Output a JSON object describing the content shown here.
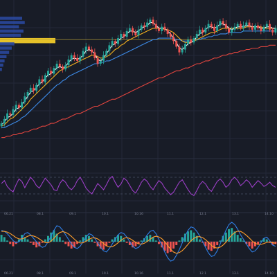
{
  "colors": {
    "background": "#181c27",
    "grid": "#232838",
    "candle_up": "#26a69a",
    "candle_down": "#ef5350",
    "ma_fast": "#ffffff",
    "ma_mid": "#f2b01e",
    "ma_slow": "#3d8be8",
    "ma_long": "#e0443e",
    "vp_bar": "#2b4aa5",
    "vp_poc": "#e6c229",
    "poc_line": "#b8a23a",
    "rsi_line": "#9c3fc7",
    "rsi_band": "#4a5068",
    "macd_line": "#2f7fe6",
    "signal_line": "#ff9e2b",
    "hist_up": "#26a69a",
    "hist_down": "#ef5350",
    "axis_text": "#7b8194"
  },
  "chart_data": [
    {
      "type": "candlestick",
      "panel": "price",
      "ylim": [
        0,
        100
      ],
      "x_count": 95,
      "x_tick_labels": [
        "06.21",
        "08.1",
        "09.1",
        "10.1",
        "10.16",
        "11.1",
        "12.1",
        "13.1",
        "14.10"
      ],
      "series": [
        {
          "name": "",
          "role": "close",
          "values": [
            18,
            21,
            25,
            24,
            28,
            31,
            29,
            33,
            37,
            40,
            43,
            41,
            45,
            49,
            47,
            52,
            55,
            53,
            57,
            60,
            58,
            56,
            59,
            63,
            66,
            64,
            62,
            65,
            69,
            72,
            70,
            68,
            64,
            60,
            62,
            66,
            69,
            73,
            76,
            74,
            78,
            81,
            79,
            83,
            85,
            82,
            80,
            84,
            87,
            86,
            89,
            91,
            88,
            85,
            83,
            86,
            84,
            81,
            79,
            76,
            72,
            68,
            70,
            74,
            77,
            75,
            78,
            81,
            84,
            82,
            85,
            88,
            86,
            83,
            87,
            90,
            88,
            85,
            82,
            84,
            86,
            88,
            85,
            87,
            89,
            86,
            84,
            87,
            85,
            83,
            86,
            88,
            84,
            82,
            85
          ]
        },
        {
          "name": "",
          "role": "ma_fast",
          "values": [
            17,
            19,
            22,
            23,
            25,
            28,
            29,
            31,
            34,
            37,
            40,
            41,
            43,
            46,
            47,
            50,
            52,
            53,
            55,
            57,
            58,
            57,
            58,
            61,
            63,
            64,
            63,
            64,
            66,
            69,
            70,
            69,
            67,
            63,
            62,
            64,
            67,
            70,
            73,
            74,
            76,
            78,
            79,
            81,
            83,
            83,
            82,
            83,
            85,
            86,
            87,
            89,
            89,
            87,
            85,
            85,
            85,
            83,
            81,
            78,
            75,
            71,
            70,
            72,
            74,
            75,
            76,
            79,
            81,
            82,
            84,
            86,
            86,
            85,
            86,
            88,
            88,
            87,
            85,
            84,
            85,
            86,
            86,
            86,
            87,
            87,
            86,
            86,
            86,
            85,
            85,
            86,
            86,
            85,
            85
          ]
        },
        {
          "name": "",
          "role": "ma_mid",
          "values": [
            16,
            17,
            19,
            21,
            22,
            24,
            26,
            28,
            30,
            32,
            35,
            37,
            39,
            41,
            43,
            45,
            47,
            49,
            51,
            53,
            55,
            56,
            57,
            58,
            59,
            60,
            61,
            62,
            63,
            64,
            65,
            66,
            66,
            65,
            64,
            64,
            65,
            66,
            68,
            70,
            71,
            73,
            74,
            76,
            77,
            78,
            79,
            80,
            81,
            82,
            83,
            84,
            85,
            85,
            85,
            85,
            84,
            84,
            83,
            82,
            80,
            78,
            76,
            75,
            75,
            75,
            76,
            77,
            78,
            79,
            80,
            81,
            82,
            82,
            83,
            84,
            85,
            85,
            85,
            85,
            85,
            85,
            85,
            85,
            86,
            86,
            86,
            86,
            86,
            86,
            85,
            85,
            85,
            85,
            85
          ]
        },
        {
          "name": "",
          "role": "ma_slow",
          "values": [
            15,
            15,
            16,
            17,
            18,
            19,
            20,
            22,
            23,
            25,
            27,
            29,
            31,
            33,
            35,
            37,
            39,
            41,
            43,
            45,
            46,
            48,
            49,
            51,
            52,
            53,
            54,
            55,
            56,
            57,
            58,
            59,
            60,
            60,
            61,
            61,
            62,
            62,
            63,
            64,
            65,
            66,
            67,
            68,
            69,
            70,
            71,
            72,
            73,
            74,
            75,
            76,
            77,
            77,
            78,
            78,
            78,
            78,
            78,
            78,
            77,
            77,
            76,
            76,
            76,
            76,
            76,
            77,
            77,
            78,
            78,
            79,
            79,
            80,
            80,
            81,
            81,
            81,
            82,
            82,
            82,
            82,
            82,
            83,
            83,
            83,
            83,
            83,
            83,
            83,
            83,
            83,
            83,
            83,
            83
          ]
        },
        {
          "name": "",
          "role": "ma_long",
          "values": [
            8,
            8,
            9,
            9,
            10,
            10,
            11,
            11,
            12,
            12,
            13,
            14,
            14,
            15,
            16,
            16,
            17,
            18,
            18,
            19,
            20,
            21,
            21,
            22,
            23,
            24,
            25,
            25,
            26,
            27,
            28,
            29,
            30,
            30,
            31,
            32,
            33,
            34,
            35,
            35,
            36,
            37,
            38,
            39,
            40,
            41,
            42,
            43,
            44,
            45,
            46,
            47,
            48,
            49,
            50,
            50,
            51,
            52,
            53,
            54,
            55,
            55,
            56,
            57,
            57,
            58,
            59,
            60,
            60,
            61,
            62,
            62,
            63,
            64,
            64,
            65,
            66,
            66,
            67,
            67,
            68,
            68,
            69,
            69,
            70,
            70,
            71,
            71,
            71,
            72,
            72,
            72,
            73,
            73,
            73
          ]
        }
      ],
      "volume_profile": [
        {
          "price": 92,
          "volume": 34
        },
        {
          "price": 89,
          "volume": 38
        },
        {
          "price": 86,
          "volume": 29
        },
        {
          "price": 83,
          "volume": 36
        },
        {
          "price": 80,
          "volume": 32
        },
        {
          "price": 77,
          "volume": 85
        },
        {
          "price": 74,
          "volume": 22
        },
        {
          "price": 71,
          "volume": 18
        },
        {
          "price": 68,
          "volume": 14
        },
        {
          "price": 65,
          "volume": 10
        },
        {
          "price": 62,
          "volume": 7
        },
        {
          "price": 59,
          "volume": 5
        },
        {
          "price": 56,
          "volume": 3
        }
      ],
      "poc_price": 77
    },
    {
      "type": "line",
      "panel": "rsi",
      "ylim": [
        0,
        100
      ],
      "bands": [
        30,
        70
      ],
      "series": [
        {
          "name": "",
          "values": [
            55,
            62,
            48,
            40,
            35,
            52,
            66,
            60,
            45,
            58,
            70,
            62,
            50,
            44,
            56,
            68,
            60,
            52,
            40,
            38,
            55,
            64,
            58,
            46,
            40,
            48,
            62,
            70,
            58,
            44,
            36,
            30,
            42,
            55,
            48,
            40,
            52,
            66,
            72,
            58,
            46,
            54,
            68,
            62,
            50,
            38,
            32,
            44,
            58,
            66,
            60,
            48,
            40,
            52,
            62,
            56,
            44,
            36,
            28,
            34,
            46,
            58,
            64,
            52,
            40,
            30,
            26,
            38,
            52,
            60,
            54,
            42,
            36,
            48,
            60,
            66,
            58,
            46,
            52,
            64,
            70,
            62,
            50,
            56,
            64,
            58,
            46,
            54,
            62,
            56,
            48,
            52,
            58,
            50,
            46
          ]
        }
      ]
    },
    {
      "type": "bar",
      "panel": "macd",
      "ylim": [
        -1,
        1
      ],
      "series": [
        {
          "name": "",
          "role": "histogram",
          "values": [
            0.3,
            0.2,
            0.05,
            -0.1,
            -0.2,
            -0.1,
            0.1,
            0.3,
            0.2,
            0.1,
            -0.05,
            -0.15,
            -0.25,
            -0.2,
            -0.05,
            0.1,
            0.25,
            0.4,
            0.5,
            0.35,
            0.2,
            0.05,
            -0.1,
            -0.2,
            -0.3,
            -0.25,
            -0.1,
            0.05,
            0.2,
            0.3,
            0.25,
            0.1,
            -0.05,
            -0.2,
            -0.3,
            -0.35,
            -0.2,
            -0.05,
            0.1,
            0.2,
            0.3,
            0.25,
            0.1,
            -0.05,
            -0.15,
            -0.25,
            -0.2,
            -0.1,
            0.05,
            0.15,
            0.25,
            0.3,
            0.2,
            0.05,
            -0.1,
            -0.25,
            -0.4,
            -0.5,
            -0.45,
            -0.3,
            -0.15,
            0.05,
            0.2,
            0.35,
            0.45,
            0.5,
            0.4,
            0.25,
            0.1,
            -0.05,
            -0.2,
            -0.35,
            -0.4,
            -0.3,
            -0.15,
            0.05,
            0.25,
            0.4,
            0.55,
            0.6,
            0.45,
            0.3,
            0.15,
            0.05,
            -0.1,
            -0.2,
            -0.3,
            -0.2,
            -0.1,
            0.05,
            0.15,
            0.1,
            -0.05,
            -0.15,
            -0.1
          ]
        },
        {
          "name": "",
          "role": "macd",
          "values": [
            0.5,
            0.45,
            0.35,
            0.2,
            0.05,
            -0.05,
            0,
            0.15,
            0.35,
            0.4,
            0.3,
            0.15,
            0,
            -0.15,
            -0.25,
            -0.2,
            0,
            0.25,
            0.5,
            0.7,
            0.65,
            0.5,
            0.3,
            0.1,
            -0.1,
            -0.25,
            -0.3,
            -0.2,
            0,
            0.2,
            0.35,
            0.3,
            0.15,
            -0.05,
            -0.25,
            -0.4,
            -0.45,
            -0.3,
            -0.1,
            0.1,
            0.3,
            0.4,
            0.35,
            0.2,
            0,
            -0.2,
            -0.3,
            -0.25,
            -0.1,
            0.1,
            0.3,
            0.45,
            0.5,
            0.35,
            0.1,
            -0.15,
            -0.45,
            -0.7,
            -0.85,
            -0.8,
            -0.6,
            -0.35,
            -0.05,
            0.25,
            0.5,
            0.65,
            0.6,
            0.45,
            0.25,
            0,
            -0.25,
            -0.5,
            -0.65,
            -0.6,
            -0.4,
            -0.1,
            0.2,
            0.5,
            0.75,
            0.85,
            0.75,
            0.55,
            0.3,
            0.1,
            -0.1,
            -0.3,
            -0.45,
            -0.4,
            -0.25,
            -0.05,
            0.15,
            0.2,
            0.05,
            -0.15,
            -0.2
          ]
        },
        {
          "name": "",
          "role": "signal",
          "values": [
            0.45,
            0.45,
            0.42,
            0.36,
            0.27,
            0.18,
            0.12,
            0.12,
            0.17,
            0.24,
            0.27,
            0.25,
            0.2,
            0.12,
            0.03,
            -0.04,
            -0.05,
            0.02,
            0.15,
            0.3,
            0.4,
            0.44,
            0.41,
            0.34,
            0.23,
            0.11,
            0,
            -0.06,
            -0.05,
            0.02,
            0.1,
            0.16,
            0.17,
            0.12,
            0.03,
            -0.08,
            -0.18,
            -0.23,
            -0.22,
            -0.15,
            -0.05,
            0.06,
            0.15,
            0.18,
            0.14,
            0.06,
            -0.03,
            -0.09,
            -0.11,
            -0.07,
            0.01,
            0.11,
            0.2,
            0.24,
            0.21,
            0.13,
            0,
            -0.17,
            -0.33,
            -0.45,
            -0.51,
            -0.48,
            -0.39,
            -0.26,
            -0.11,
            0.04,
            0.15,
            0.21,
            0.22,
            0.18,
            0.09,
            -0.03,
            -0.16,
            -0.25,
            -0.28,
            -0.24,
            -0.15,
            -0.02,
            0.14,
            0.29,
            0.4,
            0.46,
            0.45,
            0.38,
            0.28,
            0.16,
            0.03,
            -0.07,
            -0.12,
            -0.12,
            -0.08,
            -0.03,
            -0.01,
            -0.04,
            -0.07
          ]
        }
      ]
    }
  ]
}
